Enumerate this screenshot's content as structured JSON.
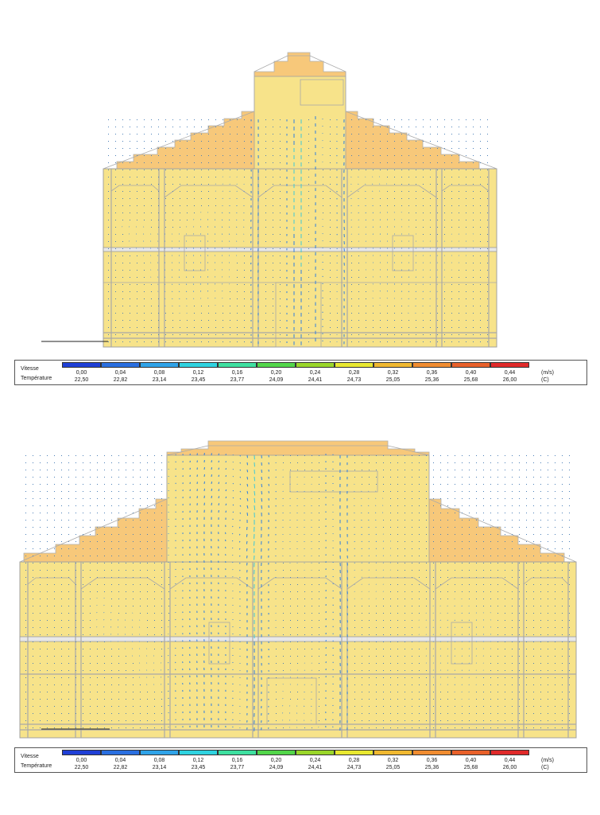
{
  "legend": {
    "speed_label": "Vitesse",
    "temperature_label": "Température",
    "speed_unit": "(m/s)",
    "temperature_unit": "(C)",
    "colors": [
      "#1f3fd6",
      "#2a6fe0",
      "#2fa3e8",
      "#2fd3e0",
      "#3ee0a0",
      "#52d64a",
      "#9ad62a",
      "#e8e830",
      "#f0b830",
      "#f08c30",
      "#e8602a",
      "#e02a2a"
    ],
    "speed_values": [
      "0,00",
      "0,04",
      "0,08",
      "0,12",
      "0,16",
      "0,20",
      "0,24",
      "0,28",
      "0,32",
      "0,36",
      "0,40",
      "0,44"
    ],
    "temperature_values": [
      "22,50",
      "22,82",
      "23,14",
      "23,45",
      "23,77",
      "24,09",
      "24,41",
      "24,73",
      "25,05",
      "25,36",
      "25,68",
      "26,00"
    ]
  },
  "palette": {
    "building_fill": "#f7e38a",
    "roof_fill": "#f7c87a",
    "wall_line": "#a8a8a8",
    "vector_color": "#3fc8d8",
    "vector_color_dark": "#2f7fe0"
  }
}
